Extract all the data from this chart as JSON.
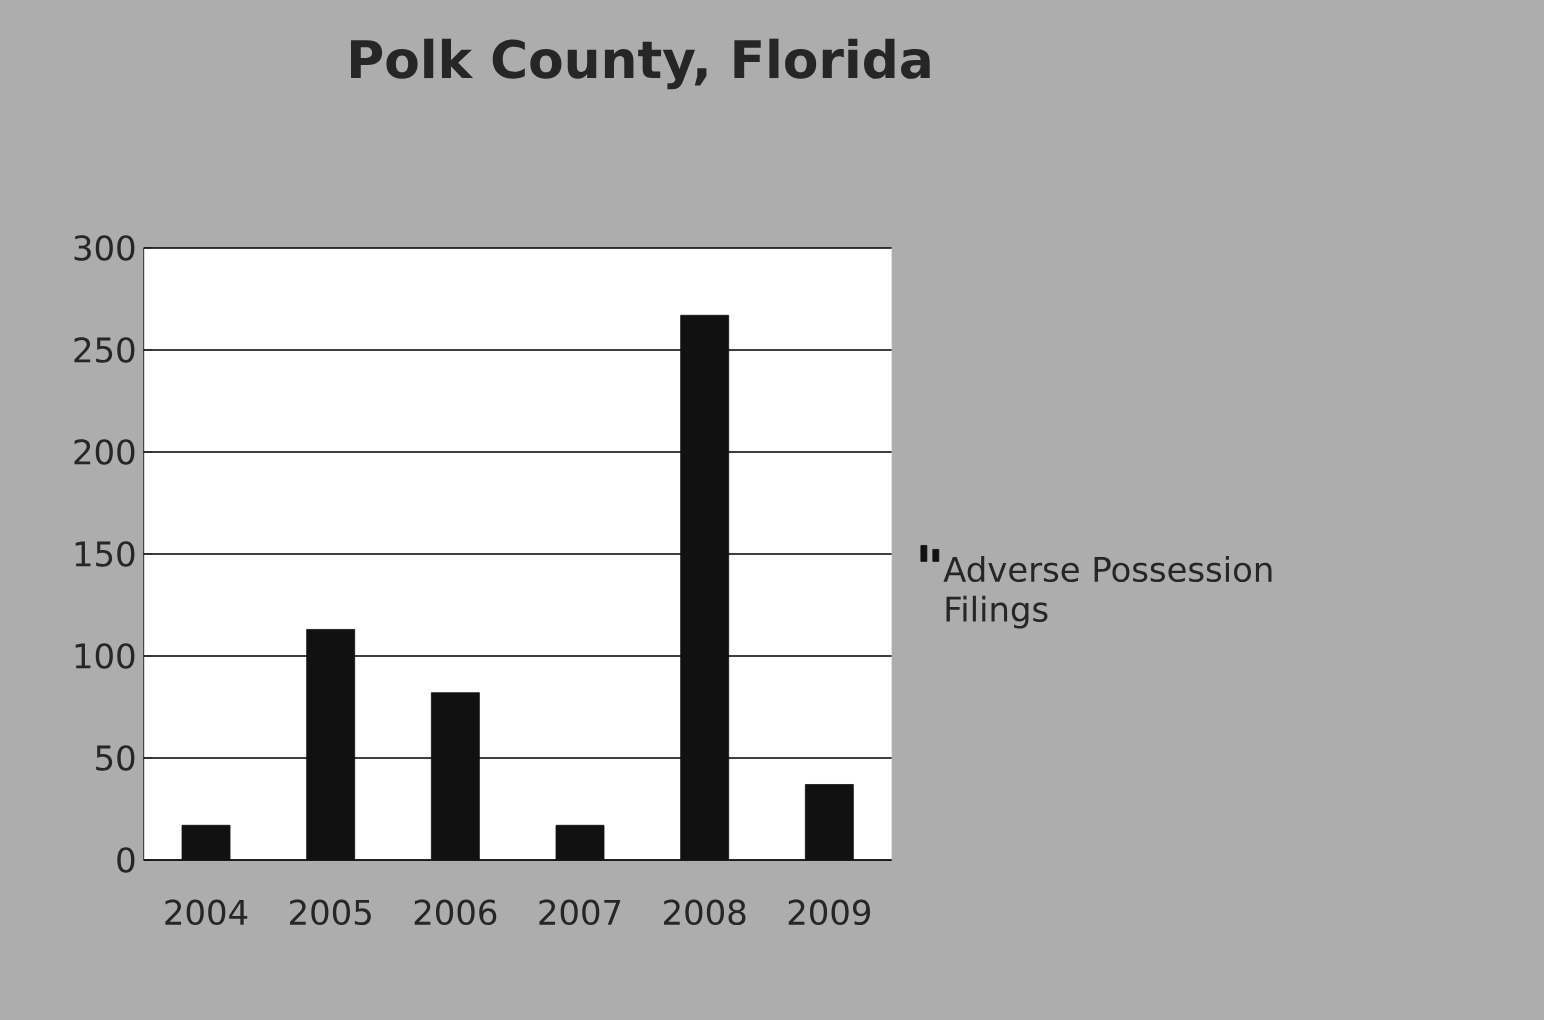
{
  "chart_data": {
    "type": "bar",
    "title": "Polk County, Florida",
    "categories": [
      "2004",
      "2005",
      "2006",
      "2007",
      "2008",
      "2009"
    ],
    "series": [
      {
        "name": "Adverse Possession Filings",
        "color": "#111111",
        "values": [
          17,
          113,
          82,
          17,
          267,
          37
        ]
      }
    ],
    "ylim": [
      0,
      300
    ],
    "yticks": [
      0,
      50,
      100,
      150,
      200,
      250,
      300
    ],
    "grid": "y",
    "legend": "right"
  }
}
